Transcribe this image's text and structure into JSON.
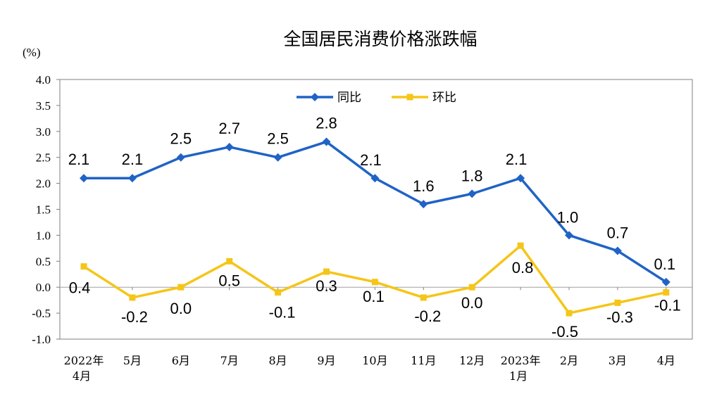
{
  "chart_data": {
    "type": "line",
    "title": "全国居民消费价格涨跌幅",
    "unit_label": "(%)",
    "ylim": [
      -1.0,
      4.0
    ],
    "y_ticks": [
      "4.0",
      "3.5",
      "3.0",
      "2.5",
      "2.0",
      "1.5",
      "1.0",
      "0.5",
      "0.0",
      "-0.5",
      "-1.0"
    ],
    "categories": [
      [
        "2022年",
        "4月"
      ],
      [
        "5月"
      ],
      [
        "6月"
      ],
      [
        "7月"
      ],
      [
        "8月"
      ],
      [
        "9月"
      ],
      [
        "10月"
      ],
      [
        "11月"
      ],
      [
        "12月"
      ],
      [
        "2023年",
        "1月"
      ],
      [
        "2月"
      ],
      [
        "3月"
      ],
      [
        "4月"
      ]
    ],
    "legend_position": "top-center",
    "grid": false,
    "series": [
      {
        "name": "同比",
        "color": "#1F63C6",
        "marker": "diamond",
        "values": [
          2.1,
          2.1,
          2.5,
          2.7,
          2.5,
          2.8,
          2.1,
          1.6,
          1.8,
          2.1,
          1.0,
          0.7,
          0.1
        ],
        "labels": [
          "2.1",
          "2.1",
          "2.5",
          "2.7",
          "2.5",
          "2.8",
          "2.1",
          "1.6",
          "1.8",
          "2.1",
          "1.0",
          "0.7",
          "0.1"
        ]
      },
      {
        "name": "环比",
        "color": "#F5C518",
        "marker": "square",
        "values": [
          0.4,
          -0.2,
          0.0,
          0.5,
          -0.1,
          0.3,
          0.1,
          -0.2,
          0.0,
          0.8,
          -0.5,
          -0.3,
          -0.1
        ],
        "labels": [
          "0.4",
          "-0.2",
          "0.0",
          "0.5",
          "-0.1",
          "0.3",
          "0.1",
          "-0.2",
          "0.0",
          "0.8",
          "-0.5",
          "-0.3",
          "-0.1"
        ]
      }
    ]
  }
}
